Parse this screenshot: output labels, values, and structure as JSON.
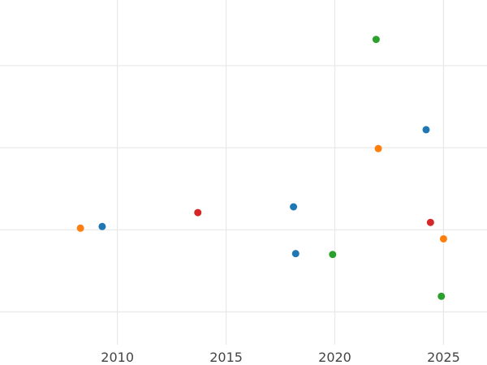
{
  "chart_data": {
    "type": "scatter",
    "title": "",
    "xlabel": "",
    "ylabel": "",
    "grid": true,
    "legend": "none",
    "xlim": [
      2004.6,
      2027.0
    ],
    "ylim": [
      0.6,
      4.8
    ],
    "x_ticks": [
      2010,
      2015,
      2020,
      2025
    ],
    "x_tick_labels": [
      "2010",
      "2015",
      "2020",
      "2025"
    ],
    "y_gridlines": [
      1,
      2,
      3,
      4
    ],
    "y_tick_labels_visible": false,
    "series": [
      {
        "color": "#1f77b4",
        "points": [
          {
            "x": 2009.3,
            "y": 2.04
          },
          {
            "x": 2018.1,
            "y": 2.28
          },
          {
            "x": 2018.2,
            "y": 1.71
          },
          {
            "x": 2024.2,
            "y": 3.22
          }
        ]
      },
      {
        "color": "#ff7f0e",
        "points": [
          {
            "x": 2008.3,
            "y": 2.02
          },
          {
            "x": 2022.0,
            "y": 2.99
          },
          {
            "x": 2025.0,
            "y": 1.89
          }
        ]
      },
      {
        "color": "#2ca02c",
        "points": [
          {
            "x": 2021.9,
            "y": 4.32
          },
          {
            "x": 2019.9,
            "y": 1.7
          },
          {
            "x": 2024.9,
            "y": 1.19
          }
        ]
      },
      {
        "color": "#d62728",
        "points": [
          {
            "x": 2013.7,
            "y": 2.21
          },
          {
            "x": 2024.4,
            "y": 2.09
          }
        ]
      }
    ]
  }
}
